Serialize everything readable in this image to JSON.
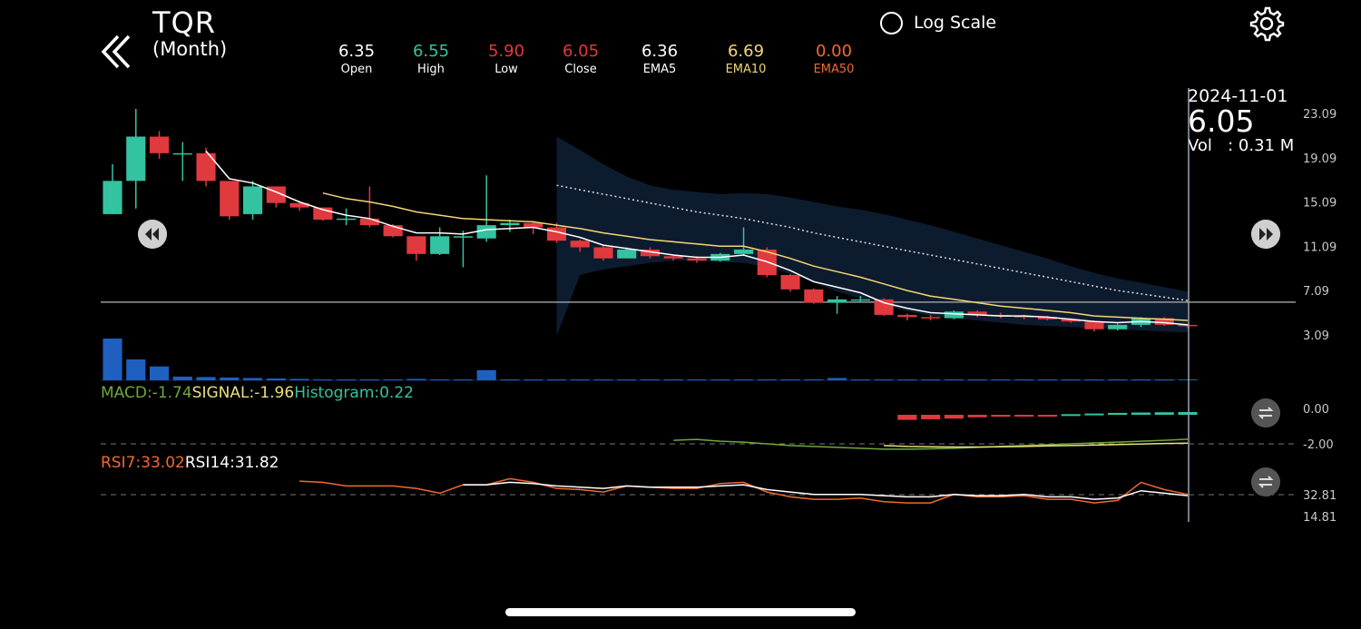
{
  "header": {
    "ticker": "TQR",
    "period": "(Month)",
    "log_scale_label": "Log Scale"
  },
  "stats": [
    {
      "label": "Open",
      "value": "6.35",
      "color": "#ffffff"
    },
    {
      "label": "High",
      "value": "6.55",
      "color": "#34c3a0"
    },
    {
      "label": "Low",
      "value": "5.90",
      "color": "#e0393e"
    },
    {
      "label": "Close",
      "value": "6.05",
      "color": "#e0393e"
    },
    {
      "label": "EMA5",
      "value": "6.36",
      "color": "#ffffff"
    },
    {
      "label": "EMA10",
      "value": "6.69",
      "color": "#f3d774"
    },
    {
      "label": "EMA50",
      "value": "0.00",
      "color": "#f06a2e"
    }
  ],
  "crosshair": {
    "date": "2024-11-01",
    "price": "6.05",
    "vol_label": "Vol",
    "vol_value": ": 0.31 M"
  },
  "macd_legend": {
    "macd": "MACD:-1.74",
    "signal": "SIGNAL:-1.96",
    "histogram": "Histogram:0.22"
  },
  "rsi_legend": {
    "rsi7": "RSI7:33.02",
    "rsi14": "RSI14:31.82"
  },
  "colors": {
    "up": "#34c3a0",
    "down": "#e0393e",
    "ema5": "#ffffff",
    "ema10": "#f3d774",
    "macd": "#6fa83a",
    "signal": "#e8e07a",
    "rsi7": "#f06a2e",
    "volume": "#1f5fc0",
    "band": "#0d1b2e"
  },
  "chart_data": {
    "type": "candlestick",
    "price_axis_ticks": [
      "23.09",
      "19.09",
      "15.09",
      "11.09",
      "7.09",
      "3.09"
    ],
    "price_range": [
      3.09,
      23.09
    ],
    "reference_price": 6.05,
    "candles": [
      [
        14.0,
        17.0,
        18.5,
        14.0
      ],
      [
        17.0,
        21.0,
        23.5,
        14.5
      ],
      [
        21.0,
        19.5,
        21.5,
        19.0
      ],
      [
        19.5,
        19.5,
        20.5,
        17.0
      ],
      [
        19.5,
        17.0,
        20.0,
        16.5
      ],
      [
        17.0,
        13.8,
        17.0,
        13.5
      ],
      [
        14.0,
        16.5,
        17.0,
        13.5
      ],
      [
        16.5,
        15.0,
        16.5,
        14.6
      ],
      [
        15.0,
        14.6,
        15.2,
        14.3
      ],
      [
        14.6,
        13.5,
        14.6,
        13.4
      ],
      [
        13.5,
        13.6,
        14.5,
        13.0
      ],
      [
        13.6,
        13.0,
        16.5,
        12.8
      ],
      [
        13.0,
        12.0,
        13.1,
        11.9
      ],
      [
        12.0,
        10.4,
        12.0,
        9.8
      ],
      [
        10.4,
        12.0,
        12.8,
        10.3
      ],
      [
        12.0,
        12.0,
        12.5,
        9.2
      ],
      [
        11.8,
        13.0,
        17.5,
        11.5
      ],
      [
        13.0,
        13.2,
        13.5,
        12.4
      ],
      [
        13.2,
        12.8,
        13.4,
        12.2
      ],
      [
        12.8,
        11.6,
        13.2,
        11.4
      ],
      [
        11.6,
        11.0,
        11.7,
        10.6
      ],
      [
        11.0,
        10.0,
        11.2,
        9.8
      ],
      [
        10.0,
        10.8,
        11.0,
        10.0
      ],
      [
        10.8,
        10.2,
        11.0,
        10.0
      ],
      [
        10.2,
        10.0,
        10.3,
        9.8
      ],
      [
        10.0,
        9.8,
        10.2,
        9.6
      ],
      [
        9.8,
        10.4,
        10.5,
        9.7
      ],
      [
        10.4,
        10.8,
        12.8,
        10.3
      ],
      [
        10.8,
        8.5,
        11.0,
        8.3
      ],
      [
        8.5,
        7.2,
        8.6,
        7.0
      ],
      [
        7.2,
        6.0,
        7.3,
        5.9
      ],
      [
        6.0,
        6.3,
        6.6,
        5.0
      ],
      [
        6.3,
        6.3,
        6.6,
        6.1
      ],
      [
        6.3,
        4.9,
        6.4,
        4.8
      ],
      [
        4.9,
        4.7,
        5.0,
        4.4
      ],
      [
        4.7,
        4.6,
        4.9,
        4.4
      ],
      [
        4.6,
        5.2,
        5.3,
        4.5
      ],
      [
        5.2,
        4.9,
        5.3,
        4.7
      ],
      [
        4.9,
        4.8,
        5.1,
        4.6
      ],
      [
        4.8,
        4.7,
        4.9,
        4.5
      ],
      [
        4.7,
        4.5,
        4.8,
        4.4
      ],
      [
        4.5,
        4.3,
        4.6,
        4.2
      ],
      [
        4.3,
        3.6,
        4.4,
        3.4
      ],
      [
        3.6,
        4.0,
        4.1,
        3.5
      ],
      [
        4.0,
        4.6,
        4.7,
        3.8
      ],
      [
        4.6,
        4.0,
        4.7,
        3.9
      ],
      [
        4.0,
        3.9,
        4.1,
        3.7
      ]
    ],
    "ema5": [
      null,
      null,
      null,
      null,
      19.7,
      17.2,
      16.8,
      16.0,
      15.1,
      14.4,
      13.9,
      13.6,
      12.9,
      12.3,
      12.3,
      12.2,
      12.6,
      12.7,
      12.8,
      12.4,
      11.9,
      11.2,
      10.9,
      10.6,
      10.3,
      10.1,
      10.1,
      10.3,
      9.7,
      8.9,
      7.9,
      7.4,
      6.9,
      6.0,
      5.5,
      5.1,
      5.0,
      4.9,
      4.8,
      4.8,
      4.7,
      4.5,
      4.3,
      4.2,
      4.3,
      4.2,
      4.0
    ],
    "ema10": [
      null,
      null,
      null,
      null,
      null,
      null,
      null,
      null,
      null,
      15.9,
      15.4,
      15.1,
      14.7,
      14.2,
      13.9,
      13.6,
      13.5,
      13.4,
      13.3,
      13.0,
      12.7,
      12.3,
      12.0,
      11.7,
      11.5,
      11.3,
      11.1,
      11.1,
      10.6,
      10.0,
      9.3,
      8.8,
      8.3,
      7.7,
      7.1,
      6.6,
      6.3,
      6.0,
      5.7,
      5.5,
      5.3,
      5.1,
      4.8,
      4.7,
      4.6,
      4.5,
      4.4
    ],
    "ema50_dotted": [
      null,
      null,
      null,
      null,
      null,
      null,
      null,
      null,
      null,
      null,
      null,
      null,
      null,
      null,
      null,
      null,
      null,
      null,
      null,
      16.6,
      16.2,
      15.8,
      15.4,
      15.0,
      14.6,
      14.2,
      13.9,
      13.6,
      13.2,
      12.8,
      12.3,
      11.9,
      11.5,
      11.1,
      10.7,
      10.3,
      9.9,
      9.5,
      9.1,
      8.7,
      8.3,
      7.9,
      7.5,
      7.1,
      6.8,
      6.5,
      6.2
    ],
    "band_upper": [
      null,
      null,
      null,
      null,
      null,
      null,
      null,
      null,
      null,
      null,
      null,
      null,
      null,
      null,
      null,
      null,
      null,
      null,
      null,
      21.0,
      19.8,
      18.5,
      17.4,
      16.6,
      16.2,
      16.0,
      15.8,
      15.9,
      15.8,
      15.5,
      15.1,
      14.7,
      14.4,
      14.0,
      13.5,
      13.0,
      12.4,
      11.8,
      11.2,
      10.6,
      10.0,
      9.3,
      8.7,
      8.2,
      7.8,
      7.4,
      7.0
    ],
    "band_lower": [
      null,
      null,
      null,
      null,
      null,
      null,
      null,
      null,
      null,
      null,
      null,
      null,
      null,
      null,
      null,
      null,
      null,
      null,
      null,
      3.0,
      8.5,
      9.0,
      9.3,
      9.6,
      9.8,
      9.8,
      9.7,
      9.6,
      9.2,
      8.6,
      7.8,
      7.0,
      6.4,
      5.8,
      5.2,
      4.8,
      4.6,
      4.4,
      4.2,
      4.0,
      3.9,
      3.8,
      3.7,
      3.6,
      3.5,
      3.4,
      3.3
    ],
    "volume": [
      0.9,
      0.45,
      0.3,
      0.08,
      0.07,
      0.06,
      0.05,
      0.04,
      0.03,
      0.02,
      0.02,
      0.02,
      0.02,
      0.03,
      0.02,
      0.02,
      0.22,
      0.02,
      0.02,
      0.02,
      0.02,
      0.02,
      0.02,
      0.02,
      0.02,
      0.02,
      0.02,
      0.02,
      0.02,
      0.02,
      0.02,
      0.05,
      0.02,
      0.02,
      0.02,
      0.02,
      0.02,
      0.02,
      0.02,
      0.02,
      0.02,
      0.02,
      0.02,
      0.02,
      0.02,
      0.02,
      0.02
    ],
    "macd_axis_ticks": [
      "0.00",
      "-2.00"
    ],
    "macd_hist": [
      null,
      null,
      null,
      null,
      null,
      null,
      null,
      null,
      null,
      null,
      null,
      null,
      null,
      null,
      null,
      null,
      null,
      null,
      null,
      null,
      null,
      null,
      null,
      null,
      null,
      null,
      null,
      null,
      null,
      null,
      null,
      null,
      null,
      null,
      -0.4,
      -0.35,
      -0.3,
      -0.2,
      -0.15,
      -0.1,
      -0.05,
      0.05,
      0.1,
      0.15,
      0.18,
      0.2,
      0.22
    ],
    "macd_line": [
      null,
      null,
      null,
      null,
      null,
      null,
      null,
      null,
      null,
      null,
      null,
      null,
      null,
      null,
      null,
      null,
      null,
      null,
      null,
      null,
      null,
      null,
      null,
      null,
      -1.8,
      -1.75,
      -1.85,
      -1.9,
      -2.0,
      -2.1,
      -2.15,
      -2.2,
      -2.25,
      -2.3,
      -2.3,
      -2.28,
      -2.25,
      -2.2,
      -2.15,
      -2.1,
      -2.05,
      -2.0,
      -1.95,
      -1.9,
      -1.85,
      -1.8,
      -1.74
    ],
    "signal_line": [
      null,
      null,
      null,
      null,
      null,
      null,
      null,
      null,
      null,
      null,
      null,
      null,
      null,
      null,
      null,
      null,
      null,
      null,
      null,
      null,
      null,
      null,
      null,
      null,
      null,
      null,
      null,
      null,
      null,
      null,
      null,
      null,
      null,
      -2.1,
      -2.15,
      -2.17,
      -2.18,
      -2.18,
      -2.17,
      -2.15,
      -2.12,
      -2.1,
      -2.07,
      -2.04,
      -2.01,
      -1.98,
      -1.96
    ],
    "rsi_axis_ticks": [
      "32.81",
      "14.81"
    ],
    "rsi7": [
      null,
      null,
      null,
      null,
      null,
      null,
      null,
      null,
      44,
      43,
      40,
      40,
      40,
      38,
      34,
      41,
      41,
      46,
      43,
      38,
      37,
      35,
      40,
      39,
      38,
      38,
      42,
      43,
      35,
      31,
      29,
      29,
      30,
      27,
      26,
      26,
      33,
      31,
      31,
      32,
      29,
      29,
      26,
      28,
      43,
      37,
      33
    ],
    "rsi14": [
      null,
      null,
      null,
      null,
      null,
      null,
      null,
      null,
      null,
      null,
      null,
      null,
      null,
      null,
      null,
      41,
      41,
      43,
      42,
      40,
      39,
      38,
      40,
      39,
      39,
      39,
      40,
      41,
      37,
      35,
      33,
      33,
      33,
      32,
      31,
      31,
      33,
      32,
      32,
      33,
      31,
      31,
      29,
      30,
      36,
      34,
      32
    ]
  }
}
